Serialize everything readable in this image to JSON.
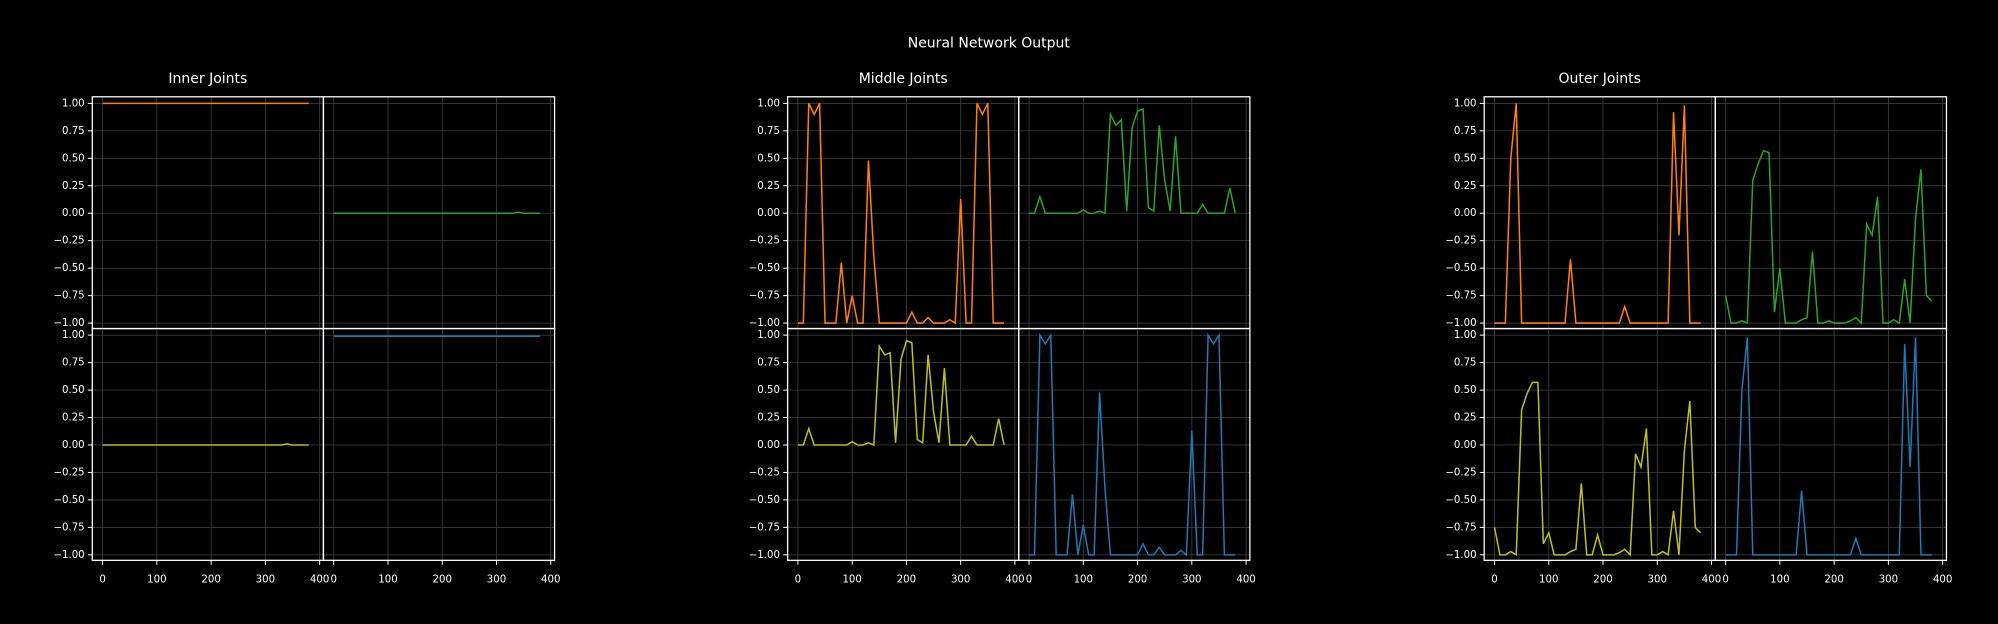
{
  "title": "Neural Network Output",
  "chart_data": [
    {
      "type": "line",
      "title": "Inner Joints",
      "grid": true,
      "x": [
        0,
        10,
        20,
        30,
        40,
        50,
        60,
        70,
        80,
        90,
        100,
        110,
        120,
        130,
        140,
        150,
        160,
        170,
        180,
        190,
        200,
        210,
        220,
        230,
        240,
        250,
        260,
        270,
        280,
        290,
        300,
        310,
        320,
        330,
        340,
        350,
        360,
        370,
        380
      ],
      "xlim": [
        -19,
        407
      ],
      "ylim": [
        -1.05,
        1.06
      ],
      "xticks": [
        0,
        100,
        200,
        300,
        400
      ],
      "yticks": [
        {
          "value": -1,
          "label": "−1.00"
        },
        {
          "value": -0.75,
          "label": "−0.75"
        },
        {
          "value": -0.5,
          "label": "−0.50"
        },
        {
          "value": -0.25,
          "label": "−0.25"
        },
        {
          "value": 0,
          "label": "0.00"
        },
        {
          "value": 0.25,
          "label": "0.25"
        },
        {
          "value": 0.5,
          "label": "0.50"
        },
        {
          "value": 0.75,
          "label": "0.75"
        },
        {
          "value": 1,
          "label": "1.00"
        }
      ],
      "series": [
        {
          "color": "#ff7f0e",
          "values": [
            1,
            1,
            1,
            1,
            1,
            1,
            1,
            1,
            1,
            1,
            1,
            1,
            1,
            1,
            1,
            1,
            1,
            1,
            1,
            1,
            1,
            1,
            1,
            1,
            1,
            1,
            1,
            1,
            1,
            1,
            1,
            1,
            1,
            1,
            1,
            1,
            1,
            1,
            1
          ]
        },
        {
          "color": "#2ca02c",
          "values": [
            0,
            0,
            0,
            0,
            0,
            0,
            0,
            0,
            0,
            0,
            0,
            0,
            0,
            0,
            0,
            0,
            0,
            0,
            0,
            0,
            0,
            0,
            0,
            0,
            0,
            0,
            0,
            0,
            0,
            0,
            0,
            0,
            0,
            0,
            0.01,
            0,
            0,
            0,
            0
          ]
        },
        {
          "color": "#bcbd22",
          "values": [
            0,
            0,
            0,
            0,
            0,
            0,
            0,
            0,
            0,
            0,
            0,
            0,
            0,
            0,
            0,
            0,
            0,
            0,
            0,
            0,
            0,
            0,
            0,
            0,
            0,
            0,
            0,
            0,
            0,
            0,
            0,
            0,
            0,
            0,
            0.01,
            0,
            0,
            0,
            0
          ]
        },
        {
          "color": "#1f77b4",
          "values": [
            0.99,
            0.99,
            0.99,
            0.99,
            0.99,
            0.99,
            0.99,
            0.99,
            0.99,
            0.99,
            0.99,
            0.99,
            0.99,
            0.99,
            0.99,
            0.99,
            0.99,
            0.99,
            0.99,
            0.99,
            0.99,
            0.99,
            0.99,
            0.99,
            0.99,
            0.99,
            0.99,
            0.99,
            0.99,
            0.99,
            0.99,
            0.99,
            0.99,
            0.99,
            0.99,
            0.99,
            0.99,
            0.99,
            0.99
          ]
        }
      ]
    },
    {
      "type": "line",
      "title": "Middle Joints",
      "grid": true,
      "x": [
        0,
        10,
        20,
        30,
        40,
        50,
        60,
        70,
        80,
        90,
        100,
        110,
        120,
        130,
        140,
        150,
        160,
        170,
        180,
        190,
        200,
        210,
        220,
        230,
        240,
        250,
        260,
        270,
        280,
        290,
        300,
        310,
        320,
        330,
        340,
        350,
        360,
        370,
        380
      ],
      "xlim": [
        -19,
        407
      ],
      "ylim": [
        -1.05,
        1.06
      ],
      "xticks": [
        0,
        100,
        200,
        300,
        400
      ],
      "yticks": [
        {
          "value": -1,
          "label": "−1.00"
        },
        {
          "value": -0.75,
          "label": "−0.75"
        },
        {
          "value": -0.5,
          "label": "−0.50"
        },
        {
          "value": -0.25,
          "label": "−0.25"
        },
        {
          "value": 0,
          "label": "0.00"
        },
        {
          "value": 0.25,
          "label": "0.25"
        },
        {
          "value": 0.5,
          "label": "0.50"
        },
        {
          "value": 0.75,
          "label": "0.75"
        },
        {
          "value": 1,
          "label": "1.00"
        }
      ],
      "series": [
        {
          "color": "#ff7f0e",
          "values": [
            -1,
            -1,
            1,
            0.9,
            1,
            -1,
            -1,
            -1,
            -0.45,
            -1,
            -0.75,
            -1,
            -1,
            0.48,
            -0.4,
            -1,
            -1,
            -1,
            -1,
            -1,
            -1,
            -0.9,
            -1,
            -1,
            -0.95,
            -1,
            -1,
            -1,
            -0.97,
            -1,
            0.13,
            -1,
            -1,
            1,
            0.9,
            1,
            -1,
            -1,
            -1
          ]
        },
        {
          "color": "#2ca02c",
          "values": [
            0,
            0,
            0.15,
            0,
            0,
            0,
            0,
            0,
            0,
            0,
            0.03,
            0,
            0,
            0.02,
            0,
            0.9,
            0.8,
            0.85,
            0.02,
            0.78,
            0.93,
            0.95,
            0.05,
            0.02,
            0.8,
            0.3,
            0.02,
            0.7,
            0,
            0,
            0,
            0,
            0.08,
            0,
            0,
            0,
            0,
            0.23,
            0
          ]
        },
        {
          "color": "#bcbd22",
          "values": [
            0,
            0,
            0.15,
            0,
            0,
            0,
            0,
            0,
            0,
            0,
            0.03,
            0,
            0,
            0.02,
            0,
            0.9,
            0.82,
            0.84,
            0.02,
            0.78,
            0.95,
            0.93,
            0.05,
            0.02,
            0.82,
            0.3,
            0.02,
            0.7,
            0,
            0,
            0,
            0,
            0.08,
            0,
            0,
            0,
            0,
            0.24,
            0
          ]
        },
        {
          "color": "#1f77b4",
          "values": [
            -1,
            -1,
            1,
            0.92,
            1,
            -1,
            -1,
            -1,
            -0.45,
            -1,
            -0.73,
            -1,
            -1,
            0.48,
            -0.4,
            -1,
            -1,
            -1,
            -1,
            -1,
            -1,
            -0.9,
            -1,
            -1,
            -0.93,
            -1,
            -1,
            -1,
            -0.96,
            -1,
            0.13,
            -1,
            -1,
            1,
            0.92,
            1,
            -1,
            -1,
            -1
          ]
        }
      ]
    },
    {
      "type": "line",
      "title": "Outer Joints",
      "grid": true,
      "x": [
        0,
        10,
        20,
        30,
        40,
        50,
        60,
        70,
        80,
        90,
        100,
        110,
        120,
        130,
        140,
        150,
        160,
        170,
        180,
        190,
        200,
        210,
        220,
        230,
        240,
        250,
        260,
        270,
        280,
        290,
        300,
        310,
        320,
        330,
        340,
        350,
        360,
        370,
        380
      ],
      "xlim": [
        -19,
        407
      ],
      "ylim": [
        -1.05,
        1.06
      ],
      "xticks": [
        0,
        100,
        200,
        300,
        400
      ],
      "yticks": [
        {
          "value": -1,
          "label": "−1.00"
        },
        {
          "value": -0.75,
          "label": "−0.75"
        },
        {
          "value": -0.5,
          "label": "−0.50"
        },
        {
          "value": -0.25,
          "label": "−0.25"
        },
        {
          "value": 0,
          "label": "0.00"
        },
        {
          "value": 0.25,
          "label": "0.25"
        },
        {
          "value": 0.5,
          "label": "0.50"
        },
        {
          "value": 0.75,
          "label": "0.75"
        },
        {
          "value": 1,
          "label": "1.00"
        }
      ],
      "series": [
        {
          "color": "#ff7f0e",
          "values": [
            -1,
            -1,
            -1,
            0.5,
            1,
            -1,
            -1,
            -1,
            -1,
            -1,
            -1,
            -1,
            -1,
            -1,
            -0.42,
            -1,
            -1,
            -1,
            -1,
            -1,
            -1,
            -1,
            -1,
            -1,
            -0.85,
            -1,
            -1,
            -1,
            -1,
            -1,
            -1,
            -1,
            -1,
            0.92,
            -0.2,
            0.98,
            -1,
            -1,
            -1
          ]
        },
        {
          "color": "#2ca02c",
          "values": [
            -0.75,
            -1,
            -1,
            -0.98,
            -1,
            0.3,
            0.45,
            0.57,
            0.55,
            -0.9,
            -0.5,
            -1,
            -1,
            -1,
            -0.97,
            -0.95,
            -0.35,
            -1,
            -1,
            -0.98,
            -1,
            -1,
            -1,
            -0.98,
            -0.95,
            -1,
            -0.1,
            -0.2,
            0.15,
            -1,
            -1,
            -0.97,
            -1,
            -0.6,
            -1,
            -0.05,
            0.4,
            -0.75,
            -0.8
          ]
        },
        {
          "color": "#bcbd22",
          "values": [
            -0.75,
            -1,
            -1,
            -0.97,
            -1,
            0.32,
            0.47,
            0.57,
            0.57,
            -0.9,
            -0.8,
            -1,
            -1,
            -1,
            -0.97,
            -0.95,
            -0.35,
            -1,
            -1,
            -0.82,
            -1,
            -1,
            -1,
            -0.98,
            -0.95,
            -1,
            -0.08,
            -0.2,
            0.15,
            -1,
            -1,
            -0.97,
            -1,
            -0.6,
            -1,
            -0.05,
            0.4,
            -0.75,
            -0.8
          ]
        },
        {
          "color": "#1f77b4",
          "values": [
            -1,
            -1,
            -1,
            0.5,
            0.98,
            -1,
            -1,
            -1,
            -1,
            -1,
            -1,
            -1,
            -1,
            -1,
            -0.42,
            -1,
            -1,
            -1,
            -1,
            -1,
            -1,
            -1,
            -1,
            -1,
            -0.85,
            -1,
            -1,
            -1,
            -1,
            -1,
            -1,
            -1,
            -1,
            0.92,
            -0.2,
            0.98,
            -1,
            -1,
            -1
          ]
        }
      ]
    }
  ]
}
